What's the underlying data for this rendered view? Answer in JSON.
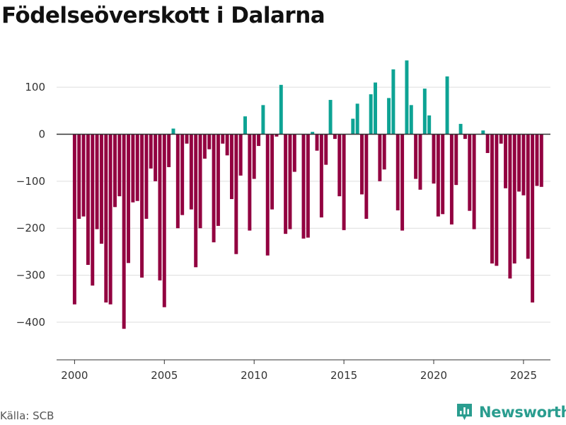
{
  "title": "Födelseöverskott i Dalarna",
  "source": "Källa: SCB",
  "brand": "Newsworthy",
  "colors": {
    "positive": "#0da394",
    "negative": "#920040",
    "grid": "#dddddd",
    "zero_line": "#333333",
    "axis_text": "#333333"
  },
  "chart_data": {
    "type": "bar",
    "title": "Födelseöverskott i Dalarna",
    "xlabel": "",
    "ylabel": "",
    "frequency": "monthly",
    "x_start": 2000.0,
    "x_step": 0.25,
    "xlim": [
      1999.0,
      2026.5
    ],
    "ylim": [
      -480,
      165
    ],
    "x_ticks": [
      2000,
      2005,
      2010,
      2015,
      2020,
      2025
    ],
    "y_ticks": [
      100,
      0,
      -100,
      -200,
      -300,
      -400
    ],
    "y_tick_labels": [
      "100",
      "0",
      "−100",
      "−200",
      "−300",
      "−400"
    ],
    "values": [
      -362,
      -180,
      -175,
      -278,
      -322,
      -202,
      -233,
      -358,
      -362,
      -155,
      -132,
      -414,
      -274,
      -145,
      -142,
      -305,
      -180,
      -73,
      -100,
      -311,
      -368,
      -70,
      12,
      -200,
      -172,
      -20,
      -160,
      -283,
      -200,
      -52,
      -32,
      -230,
      -195,
      -20,
      -45,
      -138,
      -255,
      -88,
      38,
      -205,
      -95,
      -25,
      62,
      -258,
      -160,
      -5,
      105,
      -212,
      -202,
      -80,
      0,
      -222,
      -220,
      5,
      -35,
      -177,
      -65,
      73,
      -10,
      -132,
      -204,
      0,
      33,
      65,
      -128,
      -180,
      85,
      110,
      -100,
      -75,
      77,
      138,
      -162,
      -205,
      157,
      62,
      -95,
      -118,
      97,
      40,
      -105,
      -175,
      -170,
      123,
      -192,
      -108,
      22,
      -10,
      -163,
      -202,
      0,
      8,
      -40,
      -275,
      -280,
      -20,
      -115,
      -307,
      -275,
      -122,
      -130,
      -265,
      -358,
      -110,
      -112
    ]
  }
}
